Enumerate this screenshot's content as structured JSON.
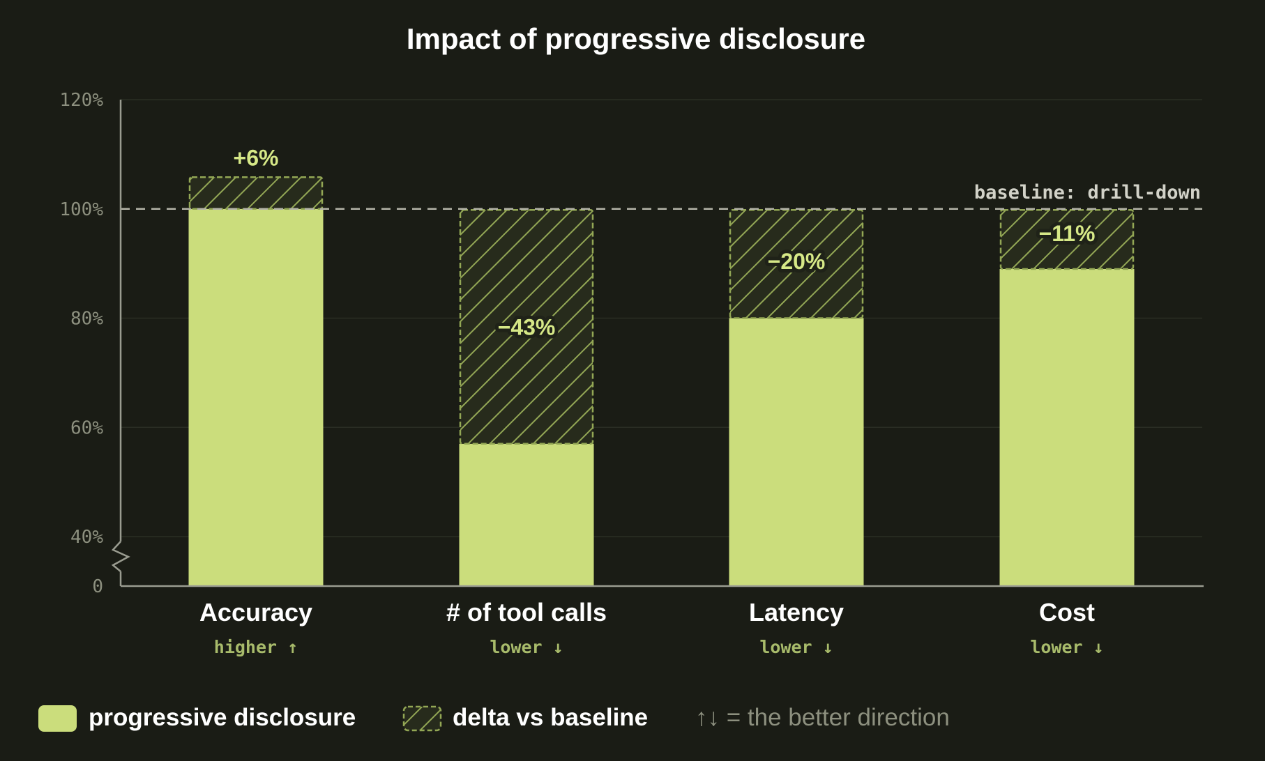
{
  "chart_data": {
    "type": "bar",
    "title": "Impact of progressive disclosure",
    "categories": [
      "Accuracy",
      "# of tool calls",
      "Latency",
      "Cost"
    ],
    "directions": [
      "higher ↑",
      "lower ↓",
      "lower ↓",
      "lower ↓"
    ],
    "series": [
      {
        "name": "progressive disclosure",
        "values": [
          106,
          57,
          80,
          89
        ]
      },
      {
        "name": "delta vs baseline",
        "values": [
          6,
          -43,
          -20,
          -11
        ]
      }
    ],
    "delta_labels": [
      "+6%",
      "−43%",
      "−20%",
      "−11%"
    ],
    "baseline": {
      "value": 100,
      "label": "baseline: drill-down"
    },
    "y_ticks": [
      "0",
      "40%",
      "60%",
      "80%",
      "100%",
      "120%"
    ],
    "y_tick_values": [
      0,
      40,
      60,
      80,
      100,
      120
    ],
    "ylim": [
      0,
      120
    ],
    "axis_break": "between 0 and 40%",
    "grid": true,
    "legend": {
      "placement": "bottom",
      "items": [
        "progressive disclosure",
        "delta vs baseline"
      ],
      "note": "↑↓ = the better direction"
    },
    "colors": {
      "background": "#1a1c15",
      "bar": "#cbdd7c",
      "hatch": "#93a755",
      "hatch_fill": "#272b1c",
      "label": "#d6e887",
      "direction": "#a8bb6b",
      "grid": "#2b2e24",
      "axis": "#9a9c90",
      "baseline": "#b4b4a8"
    }
  }
}
